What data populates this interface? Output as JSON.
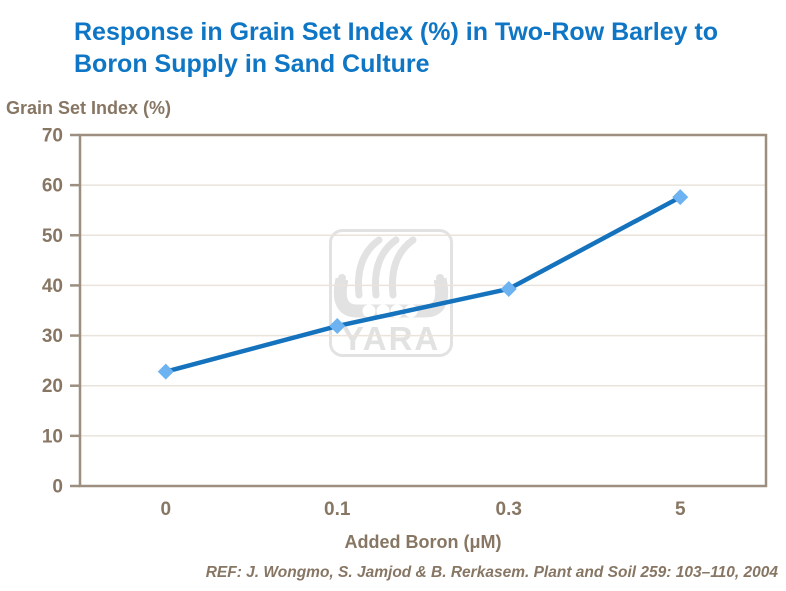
{
  "title": {
    "lines": [
      "Response in Grain Set Index (%) in Two-Row Barley to",
      "Boron Supply in Sand Culture"
    ]
  },
  "y_axis": {
    "title": "Grain Set Index (%)",
    "ticks": [
      0,
      10,
      20,
      30,
      40,
      50,
      60,
      70
    ]
  },
  "x_axis": {
    "title": "Added Boron (μM)",
    "tick_labels": [
      "0",
      "0.1",
      "0.3",
      "5"
    ]
  },
  "watermark": {
    "text": "YARA",
    "icon": "viking-ship-logo"
  },
  "reference": "REF: J. Wongmo, S. Jamjod & B. Rerkasem. Plant and Soil 259: 103–110, 2004",
  "colors": {
    "title_blue": "#0e76c4",
    "line_blue": "#1572bd",
    "marker_blue": "#6db3f2",
    "axis_text": "#877663",
    "axis_line": "#9c8f80",
    "gridline": "#eae3db",
    "watermark_gray": "#e2e2e2"
  },
  "chart_data": {
    "type": "line",
    "title": "Response in Grain Set Index (%) in Two-Row Barley to Boron Supply in Sand Culture",
    "categories": [
      "0",
      "0.1",
      "0.3",
      "5"
    ],
    "series": [
      {
        "name": "Grain Set Index (%)",
        "values": [
          22.8,
          31.9,
          39.3,
          57.6
        ]
      }
    ],
    "xlabel": "Added Boron (μM)",
    "ylabel": "Grain Set Index (%)",
    "ylim": [
      0,
      70
    ],
    "y_tick_step": 10,
    "grid": "horizontal-light",
    "legend": false,
    "marker": "diamond",
    "annotation": "REF: J. Wongmo, S. Jamjod & B. Rerkasem. Plant and Soil 259: 103–110, 2004"
  }
}
